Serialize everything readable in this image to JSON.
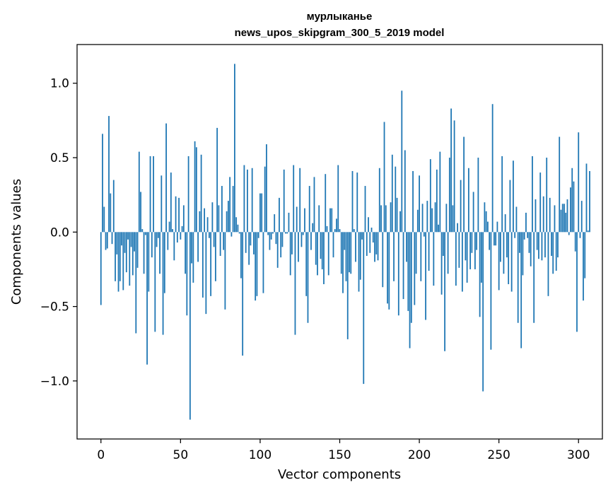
{
  "chart_data": {
    "type": "bar",
    "title": "мурлыканье",
    "subtitle": "news_upos_skipgram_300_5_2019 model",
    "xlabel": "Vector components",
    "ylabel": "Components values",
    "xlim": [
      -15,
      315
    ],
    "ylim": [
      -1.39,
      1.26
    ],
    "xticks": [
      0,
      50,
      100,
      150,
      200,
      250,
      300
    ],
    "xtick_labels": [
      "0",
      "50",
      "100",
      "150",
      "200",
      "250",
      "300"
    ],
    "yticks": [
      -1.0,
      -0.5,
      0.0,
      0.5,
      1.0
    ],
    "ytick_labels": [
      "−1.0",
      "−0.5",
      "0.0",
      "0.5",
      "1.0"
    ],
    "bar_color": "#1f77b4",
    "grid": false,
    "values": [
      -0.49,
      0.66,
      0.17,
      -0.12,
      -0.11,
      0.78,
      0.26,
      -0.08,
      0.35,
      -0.33,
      -0.15,
      -0.4,
      -0.33,
      -0.09,
      -0.39,
      -0.14,
      -0.27,
      -0.05,
      -0.36,
      -0.1,
      -0.29,
      -0.13,
      -0.68,
      -0.24,
      0.54,
      0.27,
      0.02,
      -0.28,
      -0.02,
      -0.89,
      -0.4,
      0.51,
      -0.17,
      0.51,
      -0.67,
      -0.1,
      -0.04,
      -0.28,
      0.38,
      -0.69,
      -0.41,
      0.73,
      -0.12,
      0.07,
      0.4,
      0.02,
      -0.19,
      0.24,
      -0.07,
      0.23,
      -0.05,
      0.04,
      0.18,
      -0.28,
      -0.56,
      0.51,
      -1.26,
      -0.21,
      -0.34,
      0.61,
      0.57,
      -0.2,
      0.14,
      0.52,
      -0.44,
      0.16,
      -0.55,
      0.1,
      -0.04,
      -0.43,
      0.2,
      -0.1,
      -0.33,
      0.7,
      0.18,
      -0.16,
      0.31,
      -0.12,
      -0.52,
      0.14,
      0.21,
      0.37,
      -0.03,
      0.31,
      1.13,
      0.1,
      0.05,
      -0.01,
      -0.31,
      -0.83,
      0.45,
      -0.14,
      0.42,
      -0.22,
      -0.09,
      0.43,
      -0.15,
      -0.46,
      -0.43,
      -0.04,
      0.26,
      0.26,
      -0.41,
      0.44,
      0.59,
      -0.02,
      -0.12,
      -0.05,
      -0.01,
      0.12,
      -0.08,
      -0.24,
      0.23,
      -0.17,
      -0.1,
      0.42,
      -0.01,
      -0.01,
      0.13,
      -0.29,
      -0.15,
      0.45,
      -0.69,
      0.17,
      -0.2,
      0.43,
      -0.1,
      -0.02,
      0.16,
      -0.43,
      -0.61,
      0.31,
      -0.12,
      0.06,
      0.37,
      -0.22,
      -0.29,
      0.18,
      -0.18,
      -0.25,
      -0.35,
      0.39,
      0.04,
      -0.29,
      0.16,
      0.16,
      -0.17,
      0.02,
      0.09,
      0.45,
      0.02,
      -0.28,
      -0.41,
      -0.12,
      -0.33,
      -0.72,
      -0.27,
      -0.28,
      0.41,
      0.02,
      -0.2,
      0.4,
      -0.4,
      -0.32,
      -0.05,
      -1.02,
      0.31,
      -0.16,
      0.1,
      -0.14,
      0.03,
      -0.07,
      -0.2,
      -0.15,
      -0.19,
      0.43,
      0.18,
      -0.37,
      0.74,
      0.18,
      -0.48,
      -0.52,
      0.2,
      0.52,
      -0.33,
      0.44,
      0.23,
      -0.56,
      0.14,
      0.95,
      -0.45,
      0.55,
      -0.2,
      -0.53,
      -0.78,
      -0.61,
      0.41,
      -0.49,
      -0.28,
      0.15,
      0.38,
      -0.33,
      0.19,
      -0.03,
      -0.59,
      0.21,
      -0.26,
      0.49,
      0.16,
      -0.36,
      0.2,
      0.42,
      0.05,
      0.54,
      -0.42,
      -0.16,
      -0.8,
      0.19,
      -0.28,
      0.5,
      0.83,
      0.18,
      0.75,
      -0.36,
      0.06,
      -0.24,
      0.35,
      -0.4,
      0.64,
      -0.19,
      -0.34,
      0.43,
      -0.25,
      -0.14,
      0.27,
      -0.25,
      -0.12,
      0.5,
      -0.57,
      -0.34,
      -1.07,
      0.2,
      0.14,
      0.07,
      -0.12,
      -0.79,
      0.86,
      -0.09,
      -0.09,
      0.07,
      -0.39,
      -0.2,
      0.51,
      -0.28,
      0.12,
      -0.17,
      -0.35,
      0.35,
      -0.4,
      0.48,
      -0.04,
      0.17,
      -0.61,
      -0.14,
      -0.78,
      -0.29,
      -0.05,
      0.13,
      -0.04,
      -0.14,
      -0.23,
      0.51,
      -0.61,
      0.22,
      -0.12,
      -0.18,
      0.4,
      -0.19,
      0.24,
      -0.17,
      0.5,
      -0.43,
      0.23,
      -0.16,
      -0.28,
      0.18,
      -0.26,
      -0.17,
      0.64,
      0.15,
      0.19,
      0.19,
      0.13,
      0.22,
      -0.02,
      0.3,
      0.43,
      0.34,
      -0.13,
      -0.67,
      0.67,
      -0.04,
      0.21,
      -0.46,
      -0.31,
      0.46,
      0.01,
      0.41
    ]
  }
}
